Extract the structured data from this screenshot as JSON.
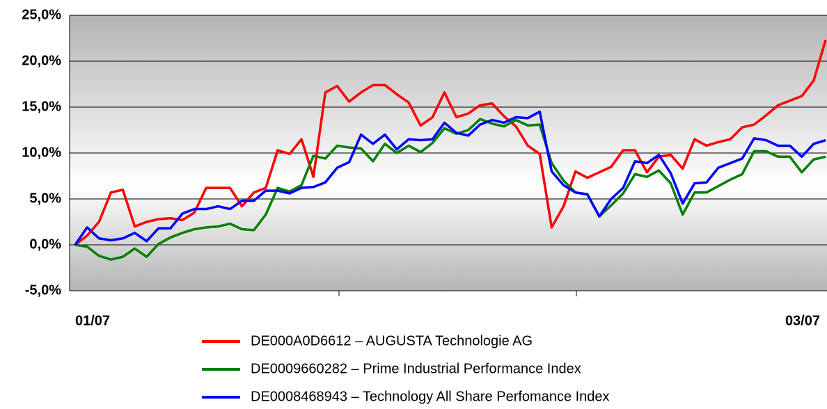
{
  "chart_data": {
    "type": "line",
    "categories": [
      "01/07",
      null,
      null,
      null,
      null,
      null,
      null,
      null,
      null,
      null,
      null,
      null,
      null,
      null,
      null,
      null,
      null,
      null,
      null,
      null,
      null,
      null,
      null,
      null,
      null,
      null,
      null,
      null,
      null,
      null,
      null,
      null,
      null,
      null,
      null,
      null,
      null,
      null,
      null,
      null,
      null,
      null,
      null,
      null,
      null,
      null,
      null,
      null,
      null,
      null,
      null,
      null,
      null,
      null,
      null,
      null,
      null,
      null,
      null,
      null,
      null,
      null,
      null,
      "03/07"
    ],
    "series": [
      {
        "name": "DE000A0D6612 – AUGUSTA Technologie AG",
        "color": "#ff0000",
        "values": [
          0,
          1.0,
          2.5,
          5.7,
          6.0,
          2.0,
          2.5,
          2.8,
          2.9,
          2.7,
          3.5,
          6.2,
          6.2,
          6.2,
          4.2,
          5.7,
          6.2,
          10.3,
          9.9,
          11.5,
          7.4,
          16.6,
          17.3,
          15.6,
          16.6,
          17.4,
          17.4,
          16.4,
          15.5,
          13.0,
          13.9,
          16.6,
          13.9,
          14.3,
          15.2,
          15.4,
          14.0,
          12.9,
          10.8,
          9.9,
          1.9,
          4.2,
          8.0,
          7.3,
          7.9,
          8.5,
          10.3,
          10.3,
          7.9,
          9.6,
          9.8,
          8.3,
          11.5,
          10.8,
          11.2,
          11.5,
          12.8,
          13.1,
          14.1,
          15.2,
          15.7,
          16.2,
          17.9,
          22.3
        ]
      },
      {
        "name": "DE0009660282 – Prime Industrial Performance Index",
        "color": "#008000",
        "values": [
          0,
          -0.2,
          -1.2,
          -1.6,
          -1.3,
          -0.4,
          -1.3,
          0.1,
          0.8,
          1.3,
          1.7,
          1.9,
          2.0,
          2.3,
          1.7,
          1.6,
          3.3,
          6.2,
          5.8,
          6.5,
          9.7,
          9.4,
          10.8,
          10.6,
          10.5,
          9.1,
          11.0,
          10.0,
          10.8,
          10.1,
          11.1,
          12.7,
          12.1,
          12.5,
          13.7,
          13.2,
          12.9,
          13.6,
          13.0,
          13.1,
          8.9,
          7.0,
          5.7,
          5.5,
          3.1,
          4.3,
          5.6,
          7.7,
          7.4,
          8.1,
          6.7,
          3.3,
          5.7,
          5.7,
          6.4,
          7.1,
          7.7,
          10.2,
          10.2,
          9.6,
          9.6,
          7.9,
          9.3,
          9.6
        ]
      },
      {
        "name": "DE0008468943 – Technology All Share Perfomance Index",
        "color": "#0000ff",
        "values": [
          0,
          1.9,
          0.7,
          0.5,
          0.7,
          1.3,
          0.4,
          1.8,
          1.8,
          3.4,
          3.9,
          3.9,
          4.2,
          3.9,
          4.8,
          4.8,
          5.9,
          5.9,
          5.6,
          6.2,
          6.3,
          6.8,
          8.4,
          9.0,
          12.0,
          11.0,
          12.0,
          10.4,
          11.5,
          11.4,
          11.5,
          13.3,
          12.2,
          11.9,
          13.1,
          13.6,
          13.3,
          13.9,
          13.8,
          14.5,
          8.0,
          6.5,
          5.7,
          5.5,
          3.1,
          5.0,
          6.2,
          9.1,
          8.9,
          9.8,
          7.8,
          4.5,
          6.7,
          6.8,
          8.4,
          8.9,
          9.4,
          11.6,
          11.4,
          10.8,
          10.8,
          9.6,
          11.0,
          11.4
        ]
      }
    ],
    "ylim": [
      -5,
      25
    ],
    "yticks": [
      {
        "value": -5,
        "label": "-5,0%"
      },
      {
        "value": 0,
        "label": "0,0%"
      },
      {
        "value": 5,
        "label": "5,0%"
      },
      {
        "value": 10,
        "label": "10,0%"
      },
      {
        "value": 15,
        "label": "15,0%"
      },
      {
        "value": 20,
        "label": "20,0%"
      },
      {
        "value": 25,
        "label": "25,0%"
      }
    ],
    "grid": true
  }
}
